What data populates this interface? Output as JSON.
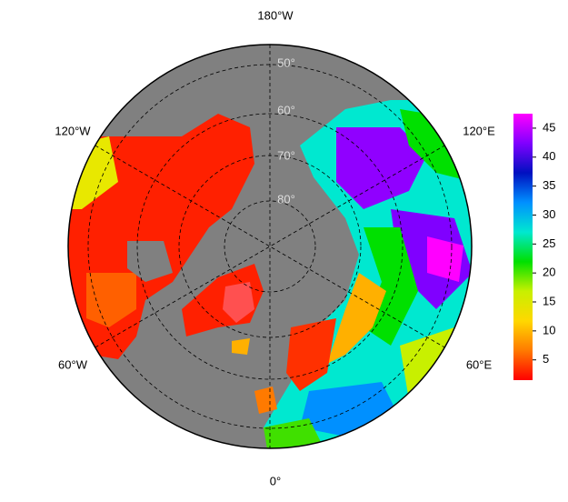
{
  "map": {
    "longitude_labels": [
      "180°W",
      "120°W",
      "120°E",
      "60°W",
      "60°E",
      "0°"
    ],
    "latitude_labels": [
      "50°",
      "60°",
      "70°",
      "80°"
    ],
    "colorbar": {
      "lim": [
        1.5,
        47.5
      ],
      "ticks": [
        5,
        10,
        15,
        20,
        25,
        30,
        35,
        40,
        45
      ],
      "colors": [
        "#ff0000",
        "#ff7a00",
        "#ffd800",
        "#c8f000",
        "#00e000",
        "#00e8d0",
        "#0090ff",
        "#0010c0",
        "#8000ff",
        "#ff00ff"
      ]
    }
  }
}
